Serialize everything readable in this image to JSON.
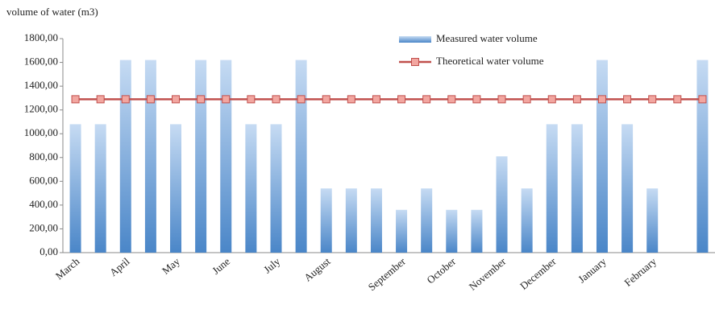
{
  "chart_data": {
    "type": "bar",
    "y_axis_label": "volume of water (m3)",
    "categories": [
      "March",
      null,
      "April",
      null,
      "May",
      null,
      "June",
      null,
      "July",
      null,
      "August",
      null,
      null,
      "September",
      null,
      "October",
      null,
      "November",
      null,
      "December",
      null,
      "January",
      null,
      "February",
      null,
      null
    ],
    "series": [
      {
        "name": "Measured water volume",
        "type": "bar",
        "color": "#4a86c8",
        "values": [
          1080,
          1080,
          1620,
          1620,
          1080,
          1620,
          1620,
          1080,
          1080,
          1620,
          540,
          540,
          540,
          360,
          540,
          360,
          360,
          810,
          540,
          1080,
          1080,
          1620,
          1080,
          540,
          null,
          1620
        ]
      },
      {
        "name": "Theoretical water volume",
        "type": "line",
        "color": "#c0504d",
        "values": [
          1290,
          1290,
          1290,
          1290,
          1290,
          1290,
          1290,
          1290,
          1290,
          1290,
          1290,
          1290,
          1290,
          1290,
          1290,
          1290,
          1290,
          1290,
          1290,
          1290,
          1290,
          1290,
          1290,
          1290,
          1290,
          1290
        ]
      }
    ],
    "ylim": [
      0,
      1800
    ],
    "yticks": [
      {
        "value": 0,
        "label": "0,00"
      },
      {
        "value": 200,
        "label": "200,00"
      },
      {
        "value": 400,
        "label": "400,00"
      },
      {
        "value": 600,
        "label": "600,00"
      },
      {
        "value": 800,
        "label": "800,00"
      },
      {
        "value": 1000,
        "label": "1000,00"
      },
      {
        "value": 1200,
        "label": "1200,00"
      },
      {
        "value": 1400,
        "label": "1400,00"
      },
      {
        "value": 1600,
        "label": "1600,00"
      },
      {
        "value": 1800,
        "label": "1800,00"
      }
    ],
    "legend": "top-right",
    "grid": false
  }
}
